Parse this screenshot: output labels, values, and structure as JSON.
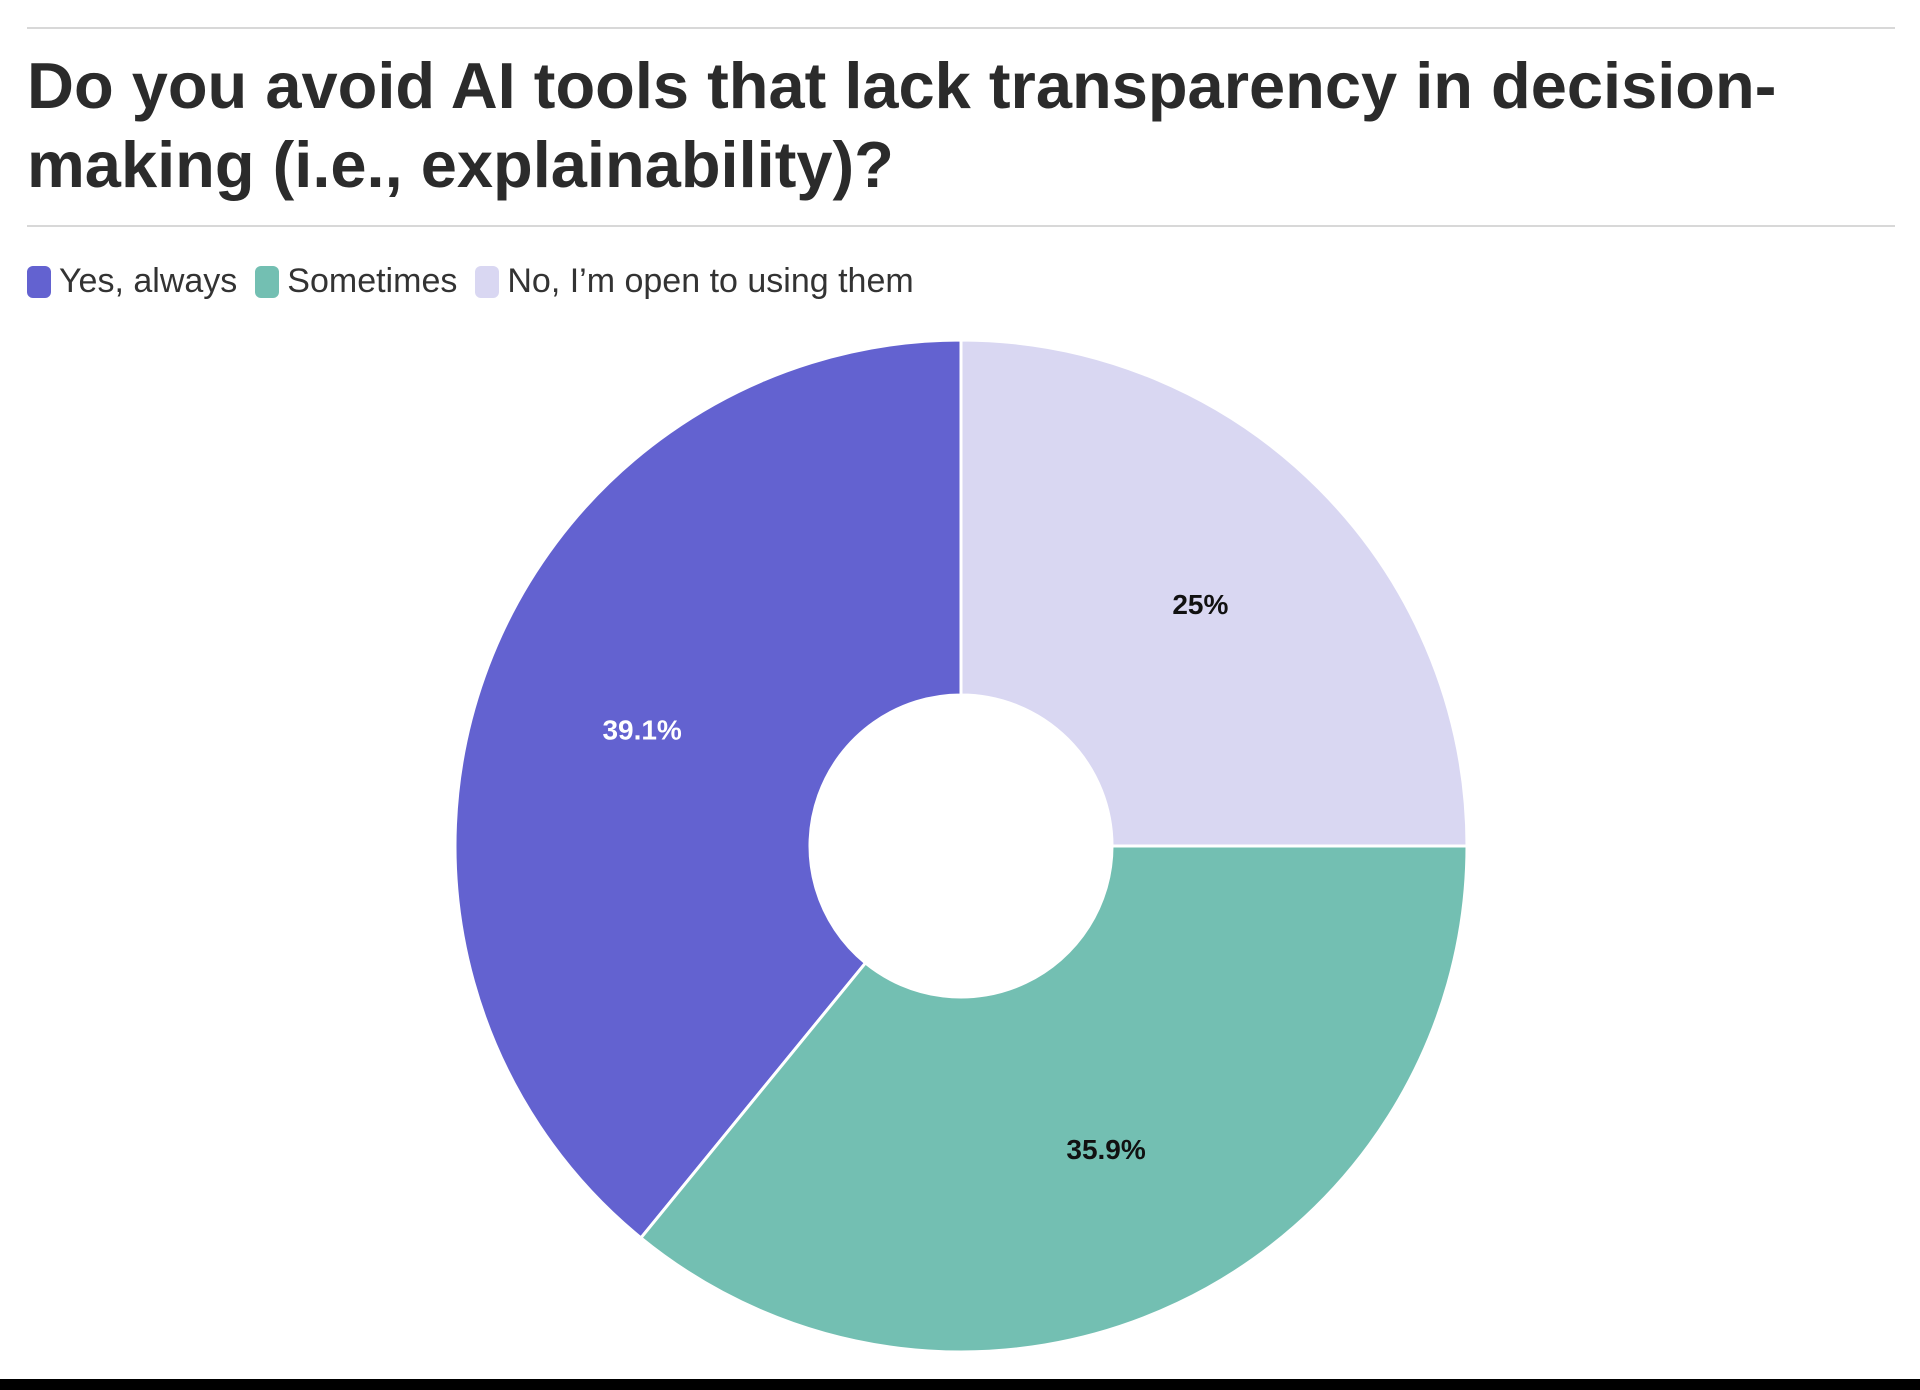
{
  "chart_data": {
    "type": "pie",
    "title": "Do you avoid AI tools that lack transparency in decision-making (i.e., explainability)?",
    "categories": [
      "Yes, always",
      "Sometimes",
      "No, I’m open to using them"
    ],
    "values": [
      39.1,
      35.9,
      25
    ],
    "labels": [
      "39.1%",
      "35.9%",
      "25%"
    ],
    "colors": [
      "#6362d0",
      "#73bfb2",
      "#d9d7f2"
    ],
    "label_colors": [
      "#ffffff",
      "#111111",
      "#111111"
    ],
    "legend_position": "top-left",
    "donut": true
  }
}
